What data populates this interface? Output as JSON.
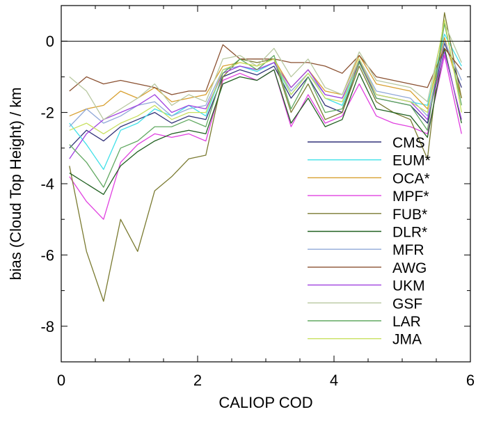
{
  "chart_data": {
    "type": "line",
    "title": "",
    "xlabel": "CALIOP COD",
    "ylabel": "bias (Cloud Top Height) / km",
    "xlim": [
      0,
      6
    ],
    "ylim": [
      -9,
      1
    ],
    "x_ticks": [
      "0",
      "2",
      "4",
      "6"
    ],
    "y_ticks": [
      "0",
      "-2",
      "-4",
      "-6",
      "-8"
    ],
    "x_tick_values": [
      0,
      2,
      4,
      6
    ],
    "y_tick_values": [
      0,
      -2,
      -4,
      -6,
      -8
    ],
    "zero_line": true,
    "grid": false,
    "legend_position": "lower-right",
    "x": [
      0.12,
      0.37,
      0.62,
      0.87,
      1.12,
      1.37,
      1.62,
      1.87,
      2.12,
      2.37,
      2.62,
      2.87,
      3.12,
      3.37,
      3.62,
      3.87,
      4.12,
      4.37,
      4.62,
      4.87,
      5.12,
      5.37,
      5.62,
      5.87
    ],
    "series": [
      {
        "name": "CMS",
        "color": "#303078",
        "values": [
          -3.0,
          -2.5,
          -2.8,
          -2.4,
          -2.2,
          -2.0,
          -2.3,
          -2.1,
          -2.2,
          -1.0,
          -0.8,
          -0.95,
          -0.7,
          -1.6,
          -1.0,
          -1.8,
          -2.0,
          -0.55,
          -1.6,
          -1.7,
          -1.8,
          -2.3,
          -0.05,
          -1.3
        ]
      },
      {
        "name": "EUM*",
        "color": "#40e0e8",
        "values": [
          -2.3,
          -2.9,
          -3.6,
          -2.5,
          -2.3,
          -1.9,
          -2.1,
          -1.8,
          -2.1,
          -0.8,
          -0.7,
          -0.85,
          -0.6,
          -1.5,
          -0.9,
          -1.6,
          -1.8,
          -0.5,
          -1.5,
          -1.6,
          -1.7,
          -1.8,
          0.2,
          -0.7
        ]
      },
      {
        "name": "OCA*",
        "color": "#d8a030",
        "values": [
          -2.1,
          -1.9,
          -1.8,
          -1.4,
          -1.6,
          -1.3,
          -1.7,
          -1.6,
          -1.5,
          -0.7,
          -0.6,
          -0.7,
          -0.5,
          -1.3,
          -0.8,
          -1.4,
          -1.5,
          -0.4,
          -1.2,
          -1.3,
          -1.4,
          -1.9,
          0.1,
          -1.6
        ]
      },
      {
        "name": "MPF*",
        "color": "#e040e0",
        "values": [
          -3.8,
          -4.5,
          -5.0,
          -3.4,
          -2.9,
          -2.6,
          -2.7,
          -2.6,
          -2.8,
          -1.1,
          -0.9,
          -1.1,
          -0.8,
          -2.4,
          -1.5,
          -2.3,
          -2.1,
          -1.2,
          -2.1,
          -2.3,
          -2.4,
          -2.6,
          -0.4,
          -2.6
        ]
      },
      {
        "name": "FUB*",
        "color": "#7a7a30",
        "values": [
          -3.5,
          -5.9,
          -7.3,
          -5.0,
          -5.9,
          -4.2,
          -3.8,
          -3.3,
          -3.2,
          -1.0,
          -0.5,
          -0.6,
          -0.5,
          -2.0,
          -1.2,
          -2.2,
          -2.0,
          -0.7,
          -1.7,
          -2.0,
          -2.2,
          -3.3,
          0.8,
          -1.6
        ]
      },
      {
        "name": "DLR*",
        "color": "#206020",
        "values": [
          -3.7,
          -4.0,
          -4.3,
          -3.5,
          -3.1,
          -2.8,
          -2.6,
          -2.5,
          -2.6,
          -1.2,
          -1.0,
          -1.1,
          -0.8,
          -2.3,
          -1.6,
          -2.4,
          -2.2,
          -0.9,
          -1.9,
          -2.0,
          -2.1,
          -2.7,
          -0.2,
          -2.3
        ]
      },
      {
        "name": "MFR",
        "color": "#90a8d8",
        "values": [
          -2.4,
          -1.9,
          -2.3,
          -2.1,
          -1.8,
          -1.7,
          -2.1,
          -1.9,
          -1.8,
          -0.8,
          -0.7,
          -0.8,
          -0.6,
          -1.4,
          -0.9,
          -1.5,
          -1.6,
          -0.5,
          -1.4,
          -1.5,
          -1.6,
          -2.1,
          0.0,
          -1.1
        ]
      },
      {
        "name": "AWG",
        "color": "#8a5030",
        "values": [
          -1.4,
          -1.0,
          -1.2,
          -1.1,
          -1.2,
          -1.3,
          -1.5,
          -1.4,
          -1.4,
          -0.1,
          -0.5,
          -0.5,
          -0.5,
          -0.6,
          -0.6,
          -0.7,
          -0.9,
          -0.4,
          -1.0,
          -1.1,
          -1.2,
          -1.3,
          -0.2,
          -0.8
        ]
      },
      {
        "name": "UKM",
        "color": "#a040e0",
        "values": [
          -3.3,
          -2.6,
          -2.2,
          -2.0,
          -1.8,
          -1.5,
          -2.0,
          -1.8,
          -1.9,
          -0.9,
          -0.7,
          -0.8,
          -0.6,
          -1.3,
          -0.8,
          -1.5,
          -1.6,
          -0.6,
          -1.5,
          -1.6,
          -1.7,
          -2.2,
          -0.3,
          -2.2
        ]
      },
      {
        "name": "GSF",
        "color": "#b8c8a0",
        "values": [
          -1.0,
          -1.4,
          -2.2,
          -1.9,
          -1.6,
          -1.2,
          -1.8,
          -1.5,
          -1.7,
          -0.5,
          -0.4,
          -0.7,
          -0.2,
          -1.0,
          -0.5,
          -1.3,
          -1.5,
          -0.3,
          -1.1,
          -1.2,
          -1.3,
          -1.7,
          0.5,
          -0.6
        ]
      },
      {
        "name": "LAR",
        "color": "#60a860",
        "values": [
          -2.9,
          -3.4,
          -4.1,
          -3.0,
          -2.8,
          -2.4,
          -2.4,
          -2.2,
          -2.4,
          -0.9,
          -0.5,
          -0.8,
          -0.4,
          -1.9,
          -1.0,
          -2.0,
          -1.9,
          -0.6,
          -1.6,
          -1.7,
          -1.8,
          -2.5,
          0.5,
          -1.8
        ]
      },
      {
        "name": "JMA",
        "color": "#c8e060",
        "values": [
          -2.5,
          -2.3,
          -2.6,
          -2.3,
          -2.1,
          -1.8,
          -2.2,
          -2.0,
          -2.0,
          -0.8,
          -0.6,
          -0.7,
          -0.5,
          -1.5,
          -0.9,
          -1.6,
          -1.7,
          -0.5,
          -1.5,
          -1.6,
          -1.7,
          -2.0,
          0.6,
          -2.0
        ]
      }
    ]
  }
}
